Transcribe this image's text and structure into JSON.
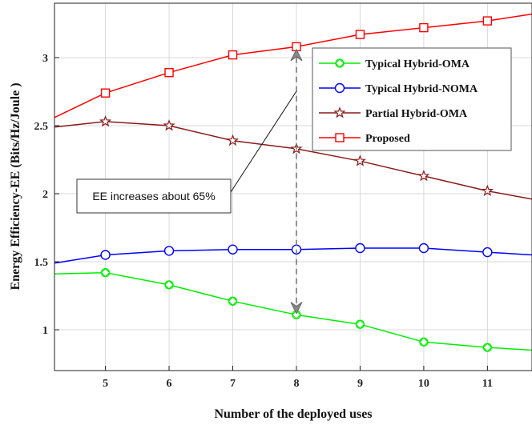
{
  "chart_data": {
    "type": "line",
    "title": "",
    "xlabel": "Number of the deployed uses",
    "ylabel": "Energy Efficiency-EE (Bits/Hz/Joule )",
    "xlim": [
      4.2,
      11.7
    ],
    "ylim": [
      0.7,
      3.4
    ],
    "xticks": [
      5,
      6,
      7,
      8,
      9,
      10,
      11
    ],
    "yticks": [
      1,
      1.5,
      2,
      2.5,
      3
    ],
    "ytick_labels": [
      "1",
      "1.5",
      "2",
      "2.5",
      "3"
    ],
    "grid": true,
    "legend_position": "top-right",
    "x": [
      4.2,
      5,
      6,
      7,
      8,
      9,
      10,
      11,
      11.7
    ],
    "series": [
      {
        "name": "Typical Hybrid-OMA",
        "color": "#00ee00",
        "marker": "diamond-circle",
        "values": [
          1.41,
          1.42,
          1.33,
          1.21,
          1.11,
          1.04,
          0.91,
          0.87,
          0.85
        ]
      },
      {
        "name": "Typical Hybrid-NOMA",
        "color": "#0000ff",
        "marker": "circle",
        "values": [
          1.49,
          1.55,
          1.58,
          1.59,
          1.59,
          1.6,
          1.6,
          1.57,
          1.55
        ]
      },
      {
        "name": "Partial Hybrid-OMA",
        "color": "#8b1a1a",
        "marker": "star",
        "values": [
          2.49,
          2.53,
          2.5,
          2.39,
          2.33,
          2.24,
          2.13,
          2.02,
          1.96
        ]
      },
      {
        "name": "Proposed",
        "color": "#ff0000",
        "marker": "square",
        "values": [
          2.56,
          2.74,
          2.89,
          3.02,
          3.08,
          3.17,
          3.22,
          3.27,
          3.32
        ]
      }
    ],
    "annotation": {
      "text": "EE increases about 65%",
      "arrow_x": 8,
      "arrow_from": 2.8,
      "arrow_up_to": 3.06,
      "arrow_down_to": 1.12
    }
  }
}
